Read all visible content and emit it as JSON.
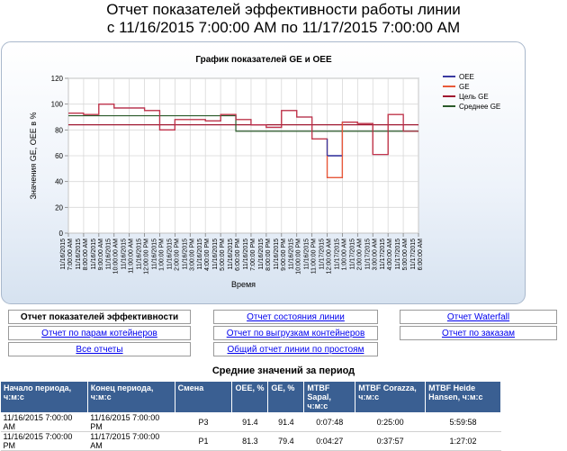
{
  "report": {
    "title": "Отчет показателей эффективности работы линии",
    "subtitle": "с 11/16/2015 7:00:00 AM по 11/17/2015 7:00:00 AM"
  },
  "chart_data": {
    "type": "line",
    "title": "График показателей GE и OEE",
    "xlabel": "Время",
    "ylabel": "Значения GE, OEE в %",
    "ylim": [
      0,
      120
    ],
    "yticks": [
      0,
      20,
      40,
      60,
      80,
      100,
      120
    ],
    "grid": true,
    "legend_position": "top-right",
    "x_ticks": [
      "11/16/2015 7:00:00 AM",
      "11/16/2015 8:00:00 AM",
      "11/16/2015 9:00:00 AM",
      "11/16/2015 10:00:00 AM",
      "11/16/2015 11:00:00 AM",
      "11/16/2015 12:00:00 PM",
      "11/16/2015 1:00:00 PM",
      "11/16/2015 2:00:00 PM",
      "11/16/2015 3:00:00 PM",
      "11/16/2015 4:00:00 PM",
      "11/16/2015 5:00:00 PM",
      "11/16/2015 6:00:00 PM",
      "11/16/2015 7:00:00 PM",
      "11/16/2015 8:00:00 PM",
      "11/16/2015 9:00:00 PM",
      "11/16/2015 10:00:00 PM",
      "11/16/2015 11:00:00 PM",
      "11/17/2015 12:00:00 AM",
      "11/17/2015 1:00:00 AM",
      "11/17/2015 2:00:00 AM",
      "11/17/2015 3:00:00 AM",
      "11/17/2015 4:00:00 AM",
      "11/17/2015 5:00:00 AM",
      "11/17/2015 6:00:00 AM"
    ],
    "series": [
      {
        "name": "OEE",
        "color": "#3a3aa0",
        "step": true,
        "values": [
          93,
          92,
          100,
          97,
          97,
          95,
          80,
          88,
          88,
          87,
          92,
          88,
          84,
          82,
          95,
          90,
          73,
          60,
          86,
          85,
          61,
          92,
          79,
          null
        ]
      },
      {
        "name": "GE",
        "color": "#e85a3a",
        "step": true,
        "values": [
          93,
          92,
          100,
          97,
          97,
          95,
          80,
          88,
          88,
          87,
          92,
          88,
          84,
          82,
          95,
          90,
          73,
          43,
          86,
          85,
          61,
          92,
          79,
          null
        ]
      },
      {
        "name": "Цель GE",
        "color": "#a01830",
        "constant": 84
      },
      {
        "name": "Среднее GE",
        "color": "#2a5a2a",
        "segments": [
          {
            "from": 0,
            "to": 11,
            "value": 91
          },
          {
            "from": 11,
            "to": 23,
            "value": 79
          }
        ]
      }
    ]
  },
  "nav": {
    "b1": "Отчет показателей эффективности линии",
    "b2": "Отчет состояния линии",
    "b3": "Отчет Waterfall",
    "b4": "Отчет по парам котейнеров",
    "b5": "Отчет по выгрузкам контейнеров",
    "b6": "Отчет по заказам",
    "b7": "Все отчеты",
    "b8": "Общий отчет линии по простоям"
  },
  "averages": {
    "title": "Средние значений за период",
    "headers": [
      "Начало периода, ч:м:с",
      "Конец периода, ч:м:с",
      "Смена",
      "OEE, %",
      "GE, %",
      "MTBF Sapal, ч:м:с",
      "MTBF Corazza, ч:м:с",
      "MTBF Heide Hansen, ч:м:с"
    ],
    "rows": [
      [
        "11/16/2015 7:00:00 AM",
        "11/16/2015 7:00:00 PM",
        "Р3",
        "91.4",
        "91.4",
        "0:07:48",
        "0:25:00",
        "5:59:58"
      ],
      [
        "11/16/2015 7:00:00 PM",
        "11/17/2015 7:00:00 AM",
        "Р1",
        "81.3",
        "79.4",
        "0:04:27",
        "0:37:57",
        "1:27:02"
      ]
    ]
  }
}
